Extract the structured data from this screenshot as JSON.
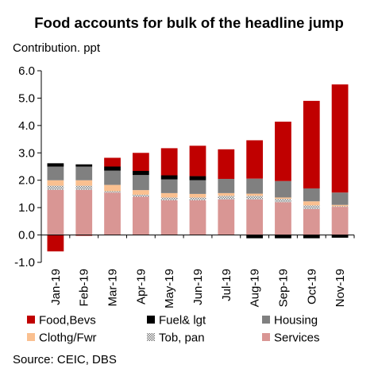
{
  "chart_data": {
    "type": "bar",
    "stacked": true,
    "title": "Food accounts for bulk of the headline jump",
    "ylabel": "Contribution. ppt",
    "source": "Source: CEIC, DBS",
    "ylim": [
      -1.0,
      6.0
    ],
    "yticks": [
      "-1.0",
      "0.0",
      "1.0",
      "2.0",
      "3.0",
      "4.0",
      "5.0",
      "6.0"
    ],
    "grid": false,
    "legend_position": "bottom",
    "categories": [
      "Jan-19",
      "Feb-19",
      "Mar-19",
      "Apr-19",
      "May-19",
      "Jun-19",
      "Jul-19",
      "Aug-19",
      "Sep-19",
      "Oct-19",
      "Nov-19"
    ],
    "series": [
      {
        "name": "Services",
        "color": "#d99694",
        "pattern": "solid",
        "values": [
          1.65,
          1.65,
          1.55,
          1.4,
          1.27,
          1.27,
          1.3,
          1.3,
          1.2,
          0.95,
          1.03
        ]
      },
      {
        "name": "Tob, pan",
        "color": "#bfbfbf",
        "pattern": "dots",
        "values": [
          0.15,
          0.15,
          0.05,
          0.07,
          0.1,
          0.1,
          0.13,
          0.13,
          0.12,
          0.13,
          0.02
        ]
      },
      {
        "name": "Clothg/Fwr",
        "color": "#fac090",
        "pattern": "solid",
        "values": [
          0.2,
          0.2,
          0.23,
          0.17,
          0.16,
          0.13,
          0.1,
          0.08,
          0.05,
          0.15,
          0.05
        ]
      },
      {
        "name": "Housing",
        "color": "#808080",
        "pattern": "solid",
        "values": [
          0.5,
          0.5,
          0.52,
          0.55,
          0.5,
          0.5,
          0.52,
          0.55,
          0.6,
          0.47,
          0.45
        ]
      },
      {
        "name": "Fuel& lgt",
        "color": "#000000",
        "pattern": "solid",
        "values": [
          0.12,
          0.08,
          0.15,
          0.15,
          0.15,
          0.15,
          0.0,
          -0.12,
          -0.12,
          -0.12,
          -0.1
        ]
      },
      {
        "name": "Food,Bevs",
        "color": "#c00000",
        "pattern": "solid",
        "values": [
          -0.6,
          -0.03,
          0.32,
          0.66,
          0.99,
          1.11,
          1.08,
          1.4,
          2.17,
          3.2,
          3.95
        ]
      }
    ],
    "legend_order": [
      "Food,Bevs",
      "Fuel& lgt",
      "Housing",
      "Clothg/Fwr",
      "Tob, pan",
      "Services"
    ]
  }
}
